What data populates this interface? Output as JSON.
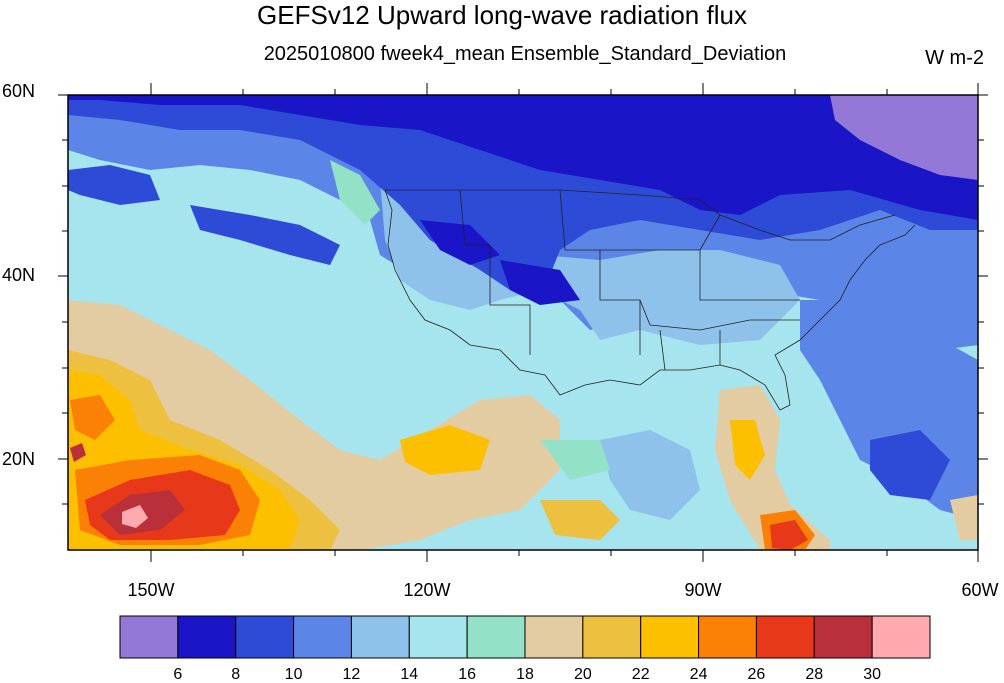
{
  "title": "GEFSv12 Upward long-wave radiation flux",
  "subtitle": "2025010800 fweek4_mean Ensemble_Standard_Deviation",
  "units": "W m-2",
  "lat_labels": [
    "60N",
    "40N",
    "20N"
  ],
  "lon_labels": [
    "150W",
    "120W",
    "90W",
    "60W"
  ],
  "colorbar": {
    "levels": [
      "6",
      "8",
      "10",
      "12",
      "14",
      "16",
      "18",
      "20",
      "22",
      "24",
      "26",
      "28",
      "30"
    ],
    "colors": [
      "#9478d8",
      "#1a16c8",
      "#2e4bd8",
      "#5b85e6",
      "#8ec2ea",
      "#a6e4ee",
      "#93e2c8",
      "#e4cca2",
      "#edc040",
      "#fcc000",
      "#fb8106",
      "#e8381a",
      "#b9303a",
      "#feaaae"
    ]
  },
  "map": {
    "extent": {
      "lon_min": -160,
      "lon_max": -60,
      "lat_min": 10,
      "lat_max": 60
    },
    "field_colors": {
      "ocean_background": "#a6e4ee",
      "level_12_14": "#8ec2ea",
      "level_10_12": "#5b85e6",
      "level_8_10": "#2e4bd8",
      "level_6_8": "#1a16c8",
      "level_lt6": "#9478d8",
      "level_18_20": "#e4cca2",
      "level_20_22": "#edc040",
      "level_22_24": "#fcc000",
      "level_24_26": "#fb8106",
      "level_26_28": "#e8381a",
      "level_28_30": "#b9303a",
      "level_gt30": "#feaaae",
      "level_16_18": "#93e2c8"
    }
  }
}
